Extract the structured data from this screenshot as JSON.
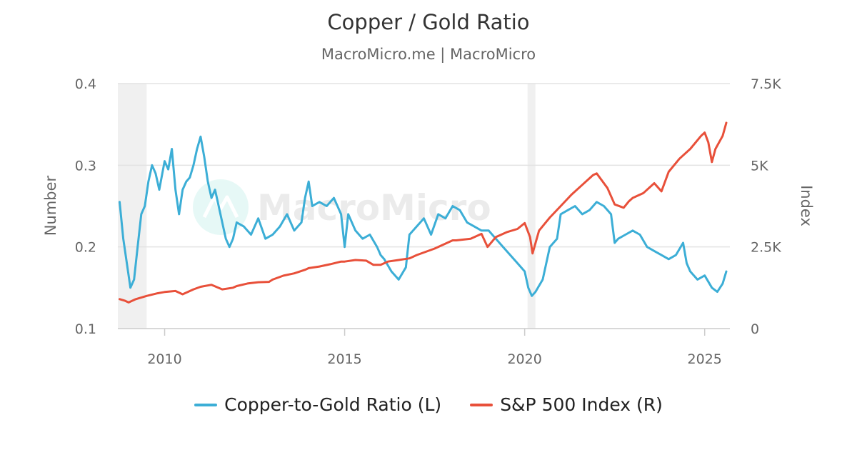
{
  "header": {
    "title": "Copper / Gold Ratio",
    "subtitle": "MacroMicro.me | MacroMicro"
  },
  "watermark": {
    "text": "MacroMicro",
    "icon": "mountain-logo-icon"
  },
  "colors": {
    "copper_gold": "#3CAED6",
    "sp500": "#E8503A",
    "recession_band": "#F0F0F0",
    "grid": "#E3E3E3"
  },
  "chart_data": {
    "type": "line",
    "title": "Copper / Gold Ratio",
    "subtitle": "MacroMicro.me | MacroMicro",
    "x_range": [
      2008.7,
      2025.7
    ],
    "x_ticks": [
      2010,
      2015,
      2020,
      2025
    ],
    "x_tick_labels": [
      "2010",
      "2015",
      "2020",
      "2025"
    ],
    "y_left": {
      "label": "Number",
      "range": [
        0.1,
        0.4
      ],
      "ticks": [
        0.1,
        0.2,
        0.3,
        0.4
      ],
      "tick_labels": [
        "0.1",
        "0.2",
        "0.3",
        "0.4"
      ]
    },
    "y_right": {
      "label": "Index",
      "range": [
        0,
        7500
      ],
      "ticks": [
        0,
        2500,
        5000,
        7500
      ],
      "tick_labels": [
        "0",
        "2.5K",
        "5K",
        "7.5K"
      ]
    },
    "grid": true,
    "legend_position": "bottom",
    "shaded_periods": [
      {
        "start": 2008.7,
        "end": 2009.5
      },
      {
        "start": 2020.08,
        "end": 2020.3
      }
    ],
    "series": [
      {
        "name": "Copper-to-Gold Ratio (L)",
        "axis": "left",
        "color": "#3CAED6",
        "x": [
          2008.75,
          2008.85,
          2008.95,
          2009.05,
          2009.15,
          2009.25,
          2009.35,
          2009.45,
          2009.55,
          2009.65,
          2009.75,
          2009.85,
          2010.0,
          2010.1,
          2010.2,
          2010.3,
          2010.4,
          2010.5,
          2010.6,
          2010.7,
          2010.8,
          2010.9,
          2011.0,
          2011.1,
          2011.2,
          2011.3,
          2011.4,
          2011.5,
          2011.6,
          2011.7,
          2011.8,
          2011.9,
          2012.0,
          2012.2,
          2012.4,
          2012.6,
          2012.8,
          2013.0,
          2013.2,
          2013.4,
          2013.6,
          2013.8,
          2013.9,
          2014.0,
          2014.1,
          2014.3,
          2014.5,
          2014.7,
          2014.9,
          2015.0,
          2015.1,
          2015.3,
          2015.5,
          2015.7,
          2015.9,
          2016.0,
          2016.1,
          2016.3,
          2016.5,
          2016.7,
          2016.8,
          2016.9,
          2017.0,
          2017.2,
          2017.4,
          2017.6,
          2017.8,
          2018.0,
          2018.2,
          2018.4,
          2018.6,
          2018.8,
          2019.0,
          2019.2,
          2019.4,
          2019.6,
          2019.8,
          2020.0,
          2020.1,
          2020.2,
          2020.3,
          2020.5,
          2020.7,
          2020.9,
          2021.0,
          2021.2,
          2021.4,
          2021.6,
          2021.8,
          2022.0,
          2022.2,
          2022.4,
          2022.5,
          2022.6,
          2022.8,
          2023.0,
          2023.2,
          2023.4,
          2023.6,
          2023.8,
          2024.0,
          2024.2,
          2024.4,
          2024.5,
          2024.6,
          2024.8,
          2025.0,
          2025.2,
          2025.35,
          2025.5,
          2025.6
        ],
        "y": [
          0.255,
          0.21,
          0.18,
          0.15,
          0.16,
          0.2,
          0.24,
          0.25,
          0.28,
          0.3,
          0.29,
          0.27,
          0.305,
          0.295,
          0.32,
          0.27,
          0.24,
          0.27,
          0.28,
          0.285,
          0.3,
          0.32,
          0.335,
          0.31,
          0.28,
          0.26,
          0.27,
          0.25,
          0.23,
          0.21,
          0.2,
          0.21,
          0.23,
          0.225,
          0.215,
          0.235,
          0.21,
          0.215,
          0.225,
          0.24,
          0.22,
          0.23,
          0.26,
          0.28,
          0.25,
          0.255,
          0.25,
          0.26,
          0.24,
          0.2,
          0.24,
          0.22,
          0.21,
          0.215,
          0.2,
          0.19,
          0.185,
          0.17,
          0.16,
          0.175,
          0.215,
          0.22,
          0.225,
          0.235,
          0.215,
          0.24,
          0.235,
          0.25,
          0.245,
          0.23,
          0.225,
          0.22,
          0.22,
          0.21,
          0.2,
          0.19,
          0.18,
          0.17,
          0.15,
          0.14,
          0.145,
          0.16,
          0.2,
          0.21,
          0.24,
          0.245,
          0.25,
          0.24,
          0.245,
          0.255,
          0.25,
          0.24,
          0.205,
          0.21,
          0.215,
          0.22,
          0.215,
          0.2,
          0.195,
          0.19,
          0.185,
          0.19,
          0.205,
          0.18,
          0.17,
          0.16,
          0.165,
          0.15,
          0.145,
          0.155,
          0.17
        ]
      },
      {
        "name": "S&P 500 Index (R)",
        "axis": "right",
        "color": "#E8503A",
        "x": [
          2008.75,
          2008.9,
          2009.0,
          2009.2,
          2009.5,
          2009.8,
          2010.0,
          2010.3,
          2010.5,
          2010.8,
          2011.0,
          2011.3,
          2011.6,
          2011.9,
          2012.0,
          2012.3,
          2012.6,
          2012.9,
          2013.0,
          2013.3,
          2013.6,
          2013.9,
          2014.0,
          2014.3,
          2014.6,
          2014.9,
          2015.0,
          2015.3,
          2015.6,
          2015.8,
          2016.0,
          2016.2,
          2016.5,
          2016.8,
          2017.0,
          2017.5,
          2018.0,
          2018.1,
          2018.5,
          2018.8,
          2018.97,
          2019.2,
          2019.5,
          2019.8,
          2020.0,
          2020.15,
          2020.22,
          2020.4,
          2020.7,
          2021.0,
          2021.3,
          2021.6,
          2021.9,
          2022.0,
          2022.3,
          2022.5,
          2022.75,
          2022.9,
          2023.0,
          2023.3,
          2023.6,
          2023.8,
          2024.0,
          2024.3,
          2024.6,
          2024.9,
          2025.0,
          2025.1,
          2025.2,
          2025.3,
          2025.5,
          2025.6
        ],
        "y": [
          900,
          850,
          800,
          900,
          1000,
          1080,
          1120,
          1150,
          1050,
          1200,
          1280,
          1340,
          1200,
          1250,
          1300,
          1380,
          1420,
          1430,
          1500,
          1620,
          1690,
          1800,
          1850,
          1900,
          1970,
          2050,
          2050,
          2100,
          2080,
          1950,
          1950,
          2050,
          2100,
          2150,
          2250,
          2450,
          2700,
          2700,
          2750,
          2900,
          2500,
          2800,
          2950,
          3050,
          3230,
          2800,
          2300,
          3000,
          3400,
          3750,
          4100,
          4400,
          4700,
          4750,
          4300,
          3800,
          3700,
          3900,
          4000,
          4150,
          4450,
          4200,
          4800,
          5200,
          5500,
          5900,
          6000,
          5700,
          5100,
          5500,
          5900,
          6300
        ]
      }
    ]
  }
}
